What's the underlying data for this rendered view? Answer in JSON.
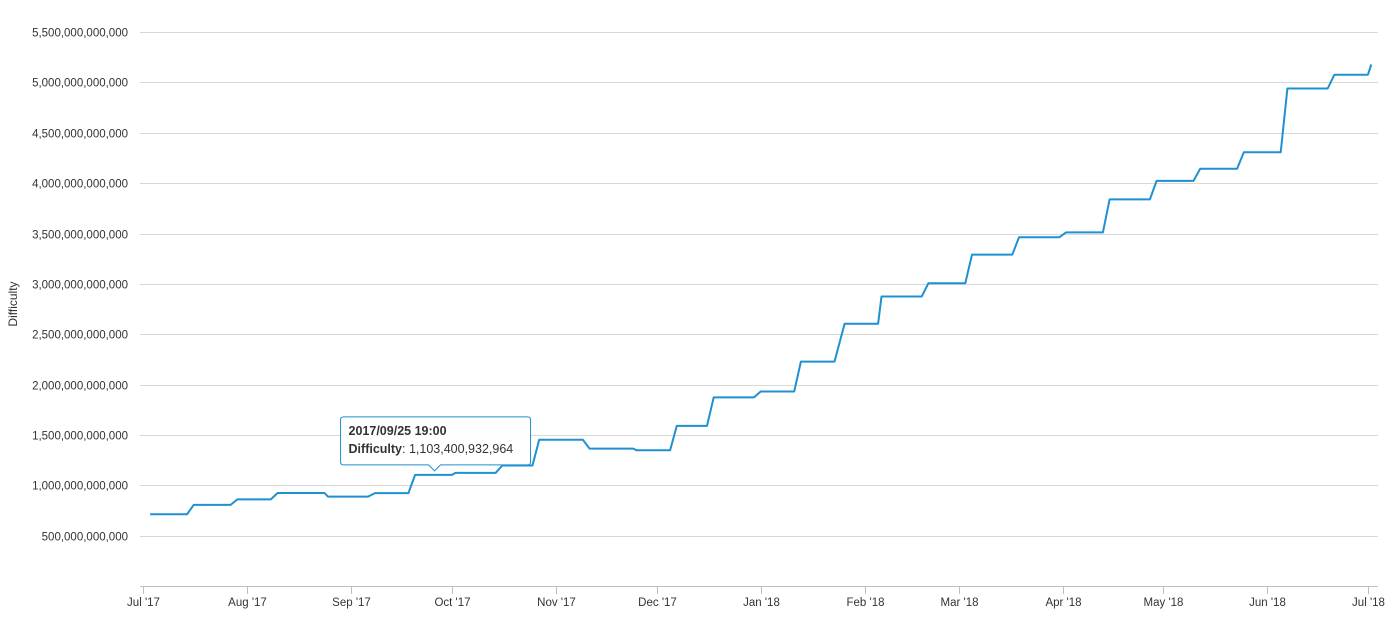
{
  "chart_data": {
    "type": "line",
    "title": "",
    "xlabel": "",
    "ylabel": "Difficulty",
    "ylim": [
      0,
      5600000000000
    ],
    "xlim": [
      "2017-06-30",
      "2018-07-04"
    ],
    "y_ticks": [
      500000000000,
      1000000000000,
      1500000000000,
      2000000000000,
      2500000000000,
      3000000000000,
      3500000000000,
      4000000000000,
      4500000000000,
      5000000000000,
      5500000000000
    ],
    "y_tick_labels": [
      "500,000,000,000",
      "1,000,000,000,000",
      "1,500,000,000,000",
      "2,000,000,000,000",
      "2,500,000,000,000",
      "3,000,000,000,000",
      "3,500,000,000,000",
      "4,000,000,000,000",
      "4,500,000,000,000",
      "5,000,000,000,000",
      "5,500,000,000,000"
    ],
    "x_ticks": [
      "2017-07-01",
      "2017-08-01",
      "2017-09-01",
      "2017-10-01",
      "2017-11-01",
      "2017-12-01",
      "2018-01-01",
      "2018-02-01",
      "2018-03-01",
      "2018-04-01",
      "2018-05-01",
      "2018-06-01",
      "2018-07-01"
    ],
    "x_tick_labels": [
      "Jul '17",
      "Aug '17",
      "Sep '17",
      "Oct '17",
      "Nov '17",
      "Dec '17",
      "Jan '18",
      "Feb '18",
      "Mar '18",
      "Apr '18",
      "May '18",
      "Jun '18",
      "Jul '18"
    ],
    "grid": "horizontal",
    "legend": "none",
    "line_color": "#1f91d0",
    "series": [
      {
        "values": [
          [
            "2017-07-03",
            712000000000
          ],
          [
            "2017-07-14",
            712000000000
          ],
          [
            "2017-07-16",
            805000000000
          ],
          [
            "2017-07-27",
            805000000000
          ],
          [
            "2017-07-29",
            860000000000
          ],
          [
            "2017-08-08",
            860000000000
          ],
          [
            "2017-08-10",
            923000000000
          ],
          [
            "2017-08-24",
            923000000000
          ],
          [
            "2017-08-25",
            888000000000
          ],
          [
            "2017-09-06",
            888000000000
          ],
          [
            "2017-09-08",
            922000000000
          ],
          [
            "2017-09-18",
            922000000000
          ],
          [
            "2017-09-20",
            1103400932964
          ],
          [
            "2017-10-01",
            1103400932964
          ],
          [
            "2017-10-02",
            1123000000000
          ],
          [
            "2017-10-14",
            1123000000000
          ],
          [
            "2017-10-16",
            1196000000000
          ],
          [
            "2017-10-25",
            1196000000000
          ],
          [
            "2017-10-27",
            1452000000000
          ],
          [
            "2017-11-09",
            1452000000000
          ],
          [
            "2017-11-11",
            1364000000000
          ],
          [
            "2017-11-24",
            1364000000000
          ],
          [
            "2017-11-25",
            1347000000000
          ],
          [
            "2017-12-05",
            1347000000000
          ],
          [
            "2017-12-07",
            1590000000000
          ],
          [
            "2017-12-16",
            1590000000000
          ],
          [
            "2017-12-18",
            1873000000000
          ],
          [
            "2017-12-30",
            1873000000000
          ],
          [
            "2018-01-01",
            1931000000000
          ],
          [
            "2018-01-11",
            1931000000000
          ],
          [
            "2018-01-13",
            2228000000000
          ],
          [
            "2018-01-23",
            2228000000000
          ],
          [
            "2018-01-26",
            2603000000000
          ],
          [
            "2018-02-05",
            2603000000000
          ],
          [
            "2018-02-06",
            2874000000000
          ],
          [
            "2018-02-18",
            2874000000000
          ],
          [
            "2018-02-20",
            3007000000000
          ],
          [
            "2018-03-03",
            3007000000000
          ],
          [
            "2018-03-05",
            3290000000000
          ],
          [
            "2018-03-17",
            3290000000000
          ],
          [
            "2018-03-19",
            3462000000000
          ],
          [
            "2018-03-31",
            3462000000000
          ],
          [
            "2018-04-02",
            3511000000000
          ],
          [
            "2018-04-13",
            3511000000000
          ],
          [
            "2018-04-15",
            3839000000000
          ],
          [
            "2018-04-27",
            3839000000000
          ],
          [
            "2018-04-29",
            4022000000000
          ],
          [
            "2018-05-10",
            4022000000000
          ],
          [
            "2018-05-12",
            4143000000000
          ],
          [
            "2018-05-23",
            4143000000000
          ],
          [
            "2018-05-25",
            4306000000000
          ],
          [
            "2018-06-05",
            4306000000000
          ],
          [
            "2018-06-07",
            4940000000000
          ],
          [
            "2018-06-19",
            4940000000000
          ],
          [
            "2018-06-21",
            5077000000000
          ],
          [
            "2018-07-01",
            5077000000000
          ],
          [
            "2018-07-02",
            5178000000000
          ]
        ]
      }
    ],
    "tooltip": {
      "date": "2017/09/25 19:00",
      "label": "Difficulty",
      "value_text": ": 1,103,400,932,964",
      "x": "2017-09-25T19:00",
      "y": 1103400932964
    }
  }
}
